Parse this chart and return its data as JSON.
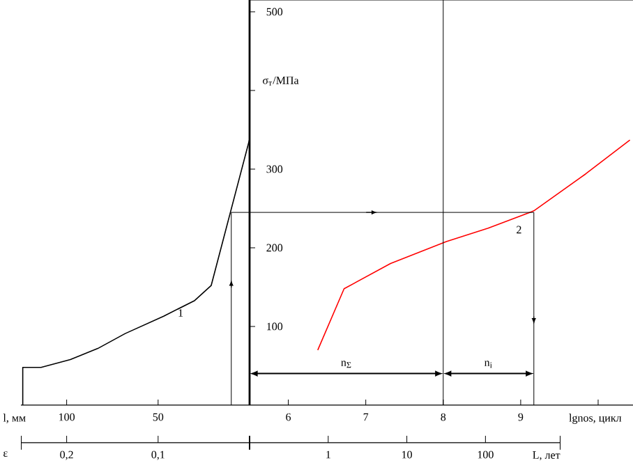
{
  "chart_data": [
    {
      "type": "line",
      "xlabel": "l, мм",
      "x2label": "ε",
      "xlim": [
        125,
        0
      ],
      "xticks": [
        100,
        50
      ],
      "x2lim": [
        0.25,
        0
      ],
      "x2ticks": [
        {
          "value": 0.2,
          "label": "0,2"
        },
        {
          "value": 0.1,
          "label": "0,1"
        }
      ],
      "ylim": [
        0,
        515
      ],
      "yticks": [
        100,
        200,
        300,
        500
      ],
      "tick_labels": "x",
      "series": [
        {
          "name": "1",
          "color": "#000000",
          "x": [
            124,
            124,
            114,
            98,
            83,
            68,
            47,
            30,
            21,
            0
          ],
          "values": [
            0,
            48,
            48,
            58,
            72,
            91,
            113,
            133,
            152,
            338
          ]
        },
        {
          "color": "#000000",
          "x": [
            10,
            10,
            0
          ],
          "values": [
            0,
            245,
            245
          ]
        }
      ]
    },
    {
      "type": "line",
      "ylabel": "σ$_{т}$/МПа",
      "xlabel": "lgnos, цикл",
      "x2label": "L, лет",
      "xlim": [
        5.5,
        10.45
      ],
      "xticks": [
        6,
        7,
        8,
        9,
        {
          "value": 10,
          "label": null
        }
      ],
      "x2lim": [
        0.1,
        900
      ],
      "x2ticks": [
        1,
        10,
        100
      ],
      "log": "x2",
      "ylim": [
        0,
        515
      ],
      "yticks": [
        100,
        200,
        300,
        {
          "value": 400,
          "label": null
        },
        500
      ],
      "ref_lines": [
        {
          "axis": "x",
          "value": 8
        }
      ],
      "annotations": [
        "n$_{Σ}$",
        "n$_{i}$"
      ],
      "series": [
        {
          "name": "2",
          "color": "#ff0000",
          "x": [
            6.38,
            6.72,
            7.32,
            8.04,
            8.58,
            9.17,
            9.84,
            10.41
          ],
          "values": [
            70,
            148,
            180,
            208,
            225,
            247,
            294,
            337
          ]
        },
        {
          "color": "#000000",
          "x": [
            5.5,
            9.17,
            9.17
          ],
          "values": [
            245,
            245,
            0
          ]
        }
      ]
    }
  ]
}
